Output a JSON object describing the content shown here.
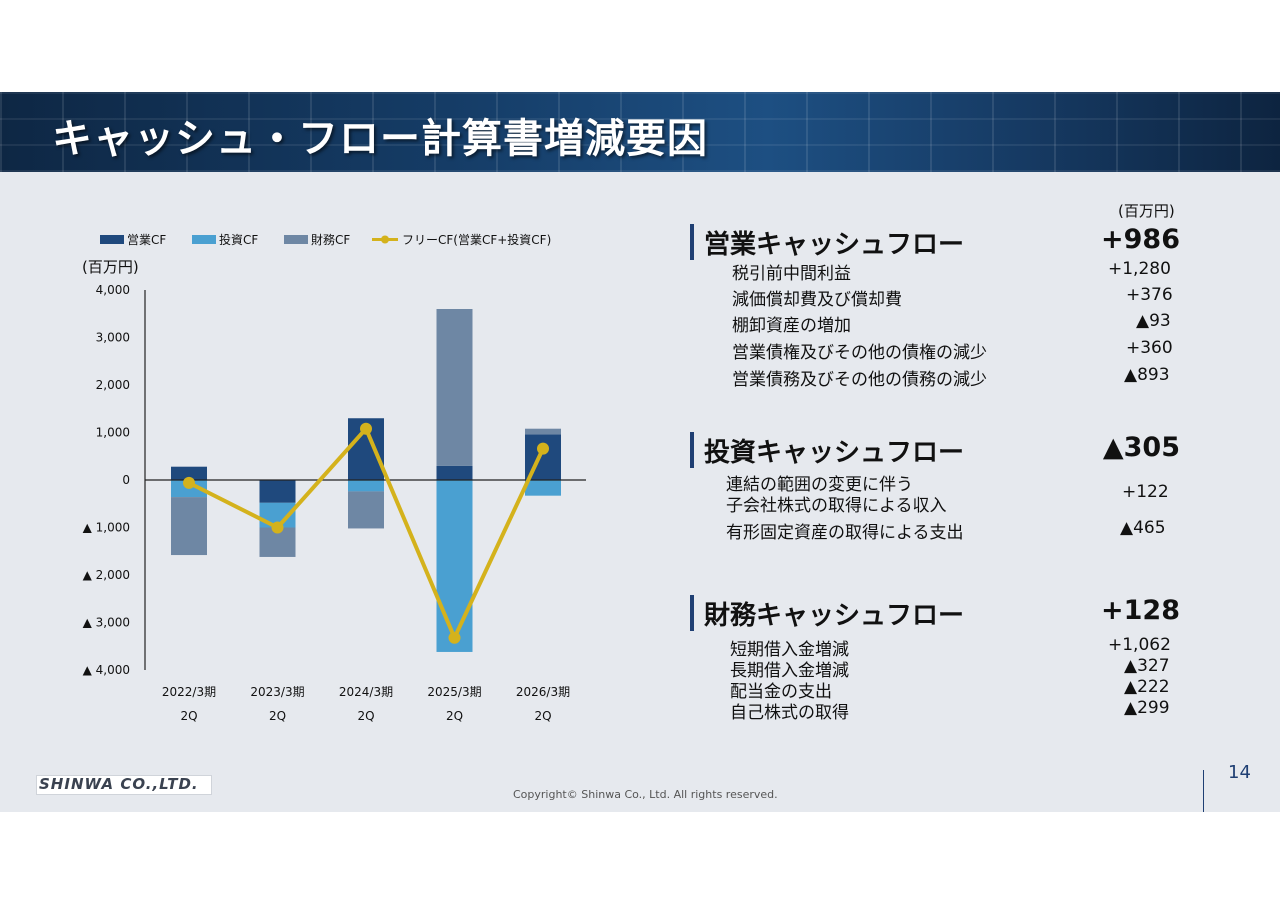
{
  "header": {
    "title": "キャッシュ・フロー計算書増減要因"
  },
  "chart_data": {
    "type": "bar",
    "unit_label": "(百万円)",
    "categories": [
      {
        "line1": "2022/3期",
        "line2": "2Q"
      },
      {
        "line1": "2023/3期",
        "line2": "2Q"
      },
      {
        "line1": "2024/3期",
        "line2": "2Q"
      },
      {
        "line1": "2025/3期",
        "line2": "2Q"
      },
      {
        "line1": "2026/3期",
        "line2": "2Q"
      }
    ],
    "stacked": true,
    "series": [
      {
        "name": "営業CF",
        "color": "#1f497d",
        "values": [
          280,
          -480,
          1300,
          300,
          960
        ]
      },
      {
        "name": "投資CF",
        "color": "#4aa0d1",
        "values": [
          -360,
          -520,
          -240,
          -3620,
          -330
        ]
      },
      {
        "name": "財務CF",
        "color": "#6e87a4",
        "values": [
          -1220,
          -620,
          -780,
          3300,
          120
        ]
      }
    ],
    "line_series": {
      "name": "フリーCF(営業CF+投資CF)",
      "color": "#d4b21c",
      "values": [
        -60,
        -1000,
        1080,
        -3320,
        660
      ]
    },
    "ylim": [
      -4000,
      4000
    ],
    "yticks": [
      {
        "value": 4000,
        "label": "4,000"
      },
      {
        "value": 3000,
        "label": "3,000"
      },
      {
        "value": 2000,
        "label": "2,000"
      },
      {
        "value": 1000,
        "label": "1,000"
      },
      {
        "value": 0,
        "label": "0"
      },
      {
        "value": -1000,
        "label": "▲ 1,000"
      },
      {
        "value": -2000,
        "label": "▲ 2,000"
      },
      {
        "value": -3000,
        "label": "▲ 3,000"
      },
      {
        "value": -4000,
        "label": "▲ 4,000"
      }
    ],
    "legend_position": "top"
  },
  "breakdown": {
    "unit": "(百万円)",
    "operating": {
      "title": "営業キャッシュフロー",
      "total": "+986",
      "items": [
        {
          "label": "税引前中間利益",
          "value": "+1,280"
        },
        {
          "label": "減価償却費及び償却費",
          "value": "+376"
        },
        {
          "label": "棚卸資産の増加",
          "value": "▲93"
        },
        {
          "label": "営業債権及びその他の債権の減少",
          "value": "+360"
        },
        {
          "label": "営業債務及びその他の債務の減少",
          "value": "▲893"
        }
      ]
    },
    "investing": {
      "title": "投資キャッシュフロー",
      "total": "▲305",
      "items": [
        {
          "label1": "連結の範囲の変更に伴う",
          "label2": "子会社株式の取得による収入",
          "value": "+122"
        },
        {
          "label": "有形固定資産の取得による支出",
          "value": "▲465"
        }
      ]
    },
    "financing": {
      "title": "財務キャッシュフロー",
      "total": "+128",
      "items": [
        {
          "label": "短期借入金増減",
          "value": "+1,062"
        },
        {
          "label": "長期借入金増減",
          "value": "▲327"
        },
        {
          "label": "配当金の支出",
          "value": "▲222"
        },
        {
          "label": "自己株式の取得",
          "value": "▲299"
        }
      ]
    }
  },
  "footer": {
    "logo": "SHINWA CO.,LTD.",
    "copyright": "Copyright© Shinwa Co., Ltd. All rights reserved.",
    "page_number": "14"
  }
}
